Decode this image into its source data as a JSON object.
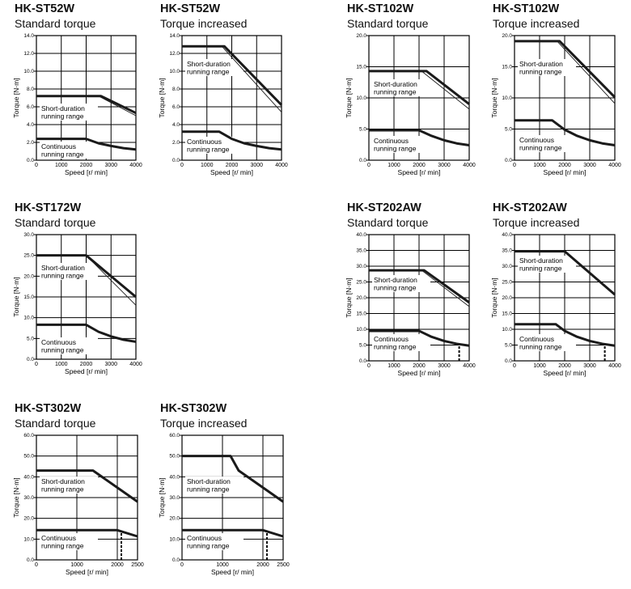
{
  "common": {
    "xlabel": "Speed [r/ min]",
    "ylabel": "Torque [N·m]",
    "short_label": [
      "Short-duration",
      "running range"
    ],
    "cont_label": [
      "Continuous",
      "running range"
    ]
  },
  "chart_data": [
    {
      "type": "line",
      "title": "HK-ST52W",
      "subtitle": "Standard torque",
      "xlim": [
        0,
        4000
      ],
      "xticks": [
        0,
        1000,
        2000,
        3000,
        4000
      ],
      "ylim": [
        0,
        14
      ],
      "yticks": [
        0,
        2,
        4,
        6,
        8,
        10,
        12,
        14
      ],
      "grid": true,
      "short": [
        [
          0,
          7.2
        ],
        [
          2600,
          7.2
        ],
        [
          4000,
          5.3
        ]
      ],
      "short_thin": [
        [
          2500,
          7.2
        ],
        [
          4000,
          5.0
        ]
      ],
      "continuous": [
        [
          0,
          2.4
        ],
        [
          2000,
          2.4
        ],
        [
          2500,
          1.9
        ],
        [
          3000,
          1.6
        ],
        [
          3500,
          1.35
        ],
        [
          4000,
          1.2
        ]
      ],
      "dashed": null
    },
    {
      "type": "line",
      "title": "HK-ST52W",
      "subtitle": "Torque increased",
      "xlim": [
        0,
        4000
      ],
      "xticks": [
        0,
        1000,
        2000,
        3000,
        4000
      ],
      "ylim": [
        0,
        14
      ],
      "yticks": [
        0,
        2,
        4,
        6,
        8,
        10,
        12,
        14
      ],
      "grid": true,
      "short": [
        [
          0,
          12.8
        ],
        [
          1700,
          12.8
        ],
        [
          4000,
          6.2
        ]
      ],
      "short_thin": [
        [
          1600,
          12.8
        ],
        [
          4000,
          5.4
        ]
      ],
      "continuous": [
        [
          0,
          3.2
        ],
        [
          1500,
          3.2
        ],
        [
          2000,
          2.4
        ],
        [
          2500,
          1.9
        ],
        [
          3000,
          1.6
        ],
        [
          3500,
          1.35
        ],
        [
          4000,
          1.2
        ]
      ],
      "dashed": null
    },
    {
      "type": "line",
      "title": "HK-ST102W",
      "subtitle": "Standard torque",
      "xlim": [
        0,
        4000
      ],
      "xticks": [
        0,
        1000,
        2000,
        3000,
        4000
      ],
      "ylim": [
        0,
        20
      ],
      "yticks": [
        0,
        5,
        10,
        15,
        20
      ],
      "grid": true,
      "short": [
        [
          0,
          14.3
        ],
        [
          2300,
          14.3
        ],
        [
          4000,
          9.0
        ]
      ],
      "short_thin": [
        [
          2100,
          14.3
        ],
        [
          4000,
          8.2
        ]
      ],
      "continuous": [
        [
          0,
          4.8
        ],
        [
          2000,
          4.8
        ],
        [
          2500,
          3.9
        ],
        [
          3000,
          3.2
        ],
        [
          3500,
          2.7
        ],
        [
          4000,
          2.4
        ]
      ],
      "dashed": null
    },
    {
      "type": "line",
      "title": "HK-ST102W",
      "subtitle": "Torque increased",
      "xlim": [
        0,
        4000
      ],
      "xticks": [
        0,
        1000,
        2000,
        3000,
        4000
      ],
      "ylim": [
        0,
        20
      ],
      "yticks": [
        0,
        5,
        10,
        15,
        20
      ],
      "grid": true,
      "short": [
        [
          0,
          19.1
        ],
        [
          1800,
          19.1
        ],
        [
          4000,
          10.1
        ]
      ],
      "short_thin": [
        [
          1700,
          19.1
        ],
        [
          4000,
          9.1
        ]
      ],
      "continuous": [
        [
          0,
          6.4
        ],
        [
          1500,
          6.4
        ],
        [
          2000,
          4.9
        ],
        [
          2500,
          3.9
        ],
        [
          3000,
          3.2
        ],
        [
          3500,
          2.7
        ],
        [
          4000,
          2.4
        ]
      ],
      "dashed": null
    },
    {
      "type": "line",
      "title": "HK-ST172W",
      "subtitle": "Standard torque",
      "xlim": [
        0,
        4000
      ],
      "xticks": [
        0,
        1000,
        2000,
        3000,
        4000
      ],
      "ylim": [
        0,
        30
      ],
      "yticks": [
        0,
        5,
        10,
        15,
        20,
        25,
        30
      ],
      "grid": true,
      "short": [
        [
          0,
          25
        ],
        [
          2000,
          25
        ],
        [
          4000,
          15
        ]
      ],
      "short_thin": [
        [
          2000,
          25
        ],
        [
          4000,
          13
        ]
      ],
      "continuous": [
        [
          0,
          8.3
        ],
        [
          2000,
          8.3
        ],
        [
          2500,
          6.6
        ],
        [
          3000,
          5.5
        ],
        [
          3500,
          4.7
        ],
        [
          4000,
          4.2
        ]
      ],
      "dashed": null
    },
    {
      "type": "line",
      "title": "HK-ST202AW",
      "subtitle": "Standard torque",
      "xlim": [
        0,
        4000
      ],
      "xticks": [
        0,
        1000,
        2000,
        3000,
        4000
      ],
      "ylim": [
        0,
        40
      ],
      "yticks": [
        0,
        5,
        10,
        15,
        20,
        25,
        30,
        35,
        40
      ],
      "grid": true,
      "short": [
        [
          0,
          28.7
        ],
        [
          2200,
          28.7
        ],
        [
          4000,
          18.5
        ]
      ],
      "short_thin": [
        [
          2100,
          28.7
        ],
        [
          4000,
          17.2
        ]
      ],
      "continuous": [
        [
          0,
          9.5
        ],
        [
          2000,
          9.5
        ],
        [
          2500,
          7.6
        ],
        [
          3000,
          6.3
        ],
        [
          3500,
          5.4
        ],
        [
          4000,
          4.8
        ]
      ],
      "dashed": [
        3600,
        5.2
      ]
    },
    {
      "type": "line",
      "title": "HK-ST202AW",
      "subtitle": "Torque increased",
      "xlim": [
        0,
        4000
      ],
      "xticks": [
        0,
        1000,
        2000,
        3000,
        4000
      ],
      "ylim": [
        0,
        40
      ],
      "yticks": [
        0,
        5,
        10,
        15,
        20,
        25,
        30,
        35,
        40
      ],
      "grid": true,
      "short": [
        [
          0,
          34.7
        ],
        [
          2000,
          34.7
        ],
        [
          4000,
          21
        ]
      ],
      "short_thin": null,
      "continuous": [
        [
          0,
          11.6
        ],
        [
          1650,
          11.6
        ],
        [
          2000,
          9.5
        ],
        [
          2500,
          7.6
        ],
        [
          3000,
          6.3
        ],
        [
          3500,
          5.4
        ],
        [
          4000,
          4.8
        ]
      ],
      "dashed": [
        3600,
        5.2
      ]
    },
    {
      "type": "line",
      "title": "HK-ST302W",
      "subtitle": "Standard torque",
      "xlim": [
        0,
        2500
      ],
      "xticks": [
        0,
        1000,
        2000,
        2500
      ],
      "ylim": [
        0,
        60
      ],
      "yticks": [
        0,
        10,
        20,
        30,
        40,
        50,
        60
      ],
      "grid": true,
      "short": [
        [
          0,
          43
        ],
        [
          1400,
          43
        ],
        [
          2500,
          28
        ]
      ],
      "short_thin": null,
      "continuous": [
        [
          0,
          14.3
        ],
        [
          2000,
          14.3
        ],
        [
          2500,
          11.3
        ]
      ],
      "dashed": [
        2100,
        13.7
      ]
    },
    {
      "type": "line",
      "title": "HK-ST302W",
      "subtitle": "Torque increased",
      "xlim": [
        0,
        2500
      ],
      "xticks": [
        0,
        1000,
        2000,
        2500
      ],
      "ylim": [
        0,
        60
      ],
      "yticks": [
        0,
        10,
        20,
        30,
        40,
        50,
        60
      ],
      "grid": true,
      "short": [
        [
          0,
          50
        ],
        [
          1200,
          50
        ],
        [
          1400,
          43
        ],
        [
          2500,
          28
        ]
      ],
      "short_thin": null,
      "continuous": [
        [
          0,
          14.3
        ],
        [
          2000,
          14.3
        ],
        [
          2500,
          11.3
        ]
      ],
      "dashed": [
        2100,
        13.7
      ]
    }
  ]
}
